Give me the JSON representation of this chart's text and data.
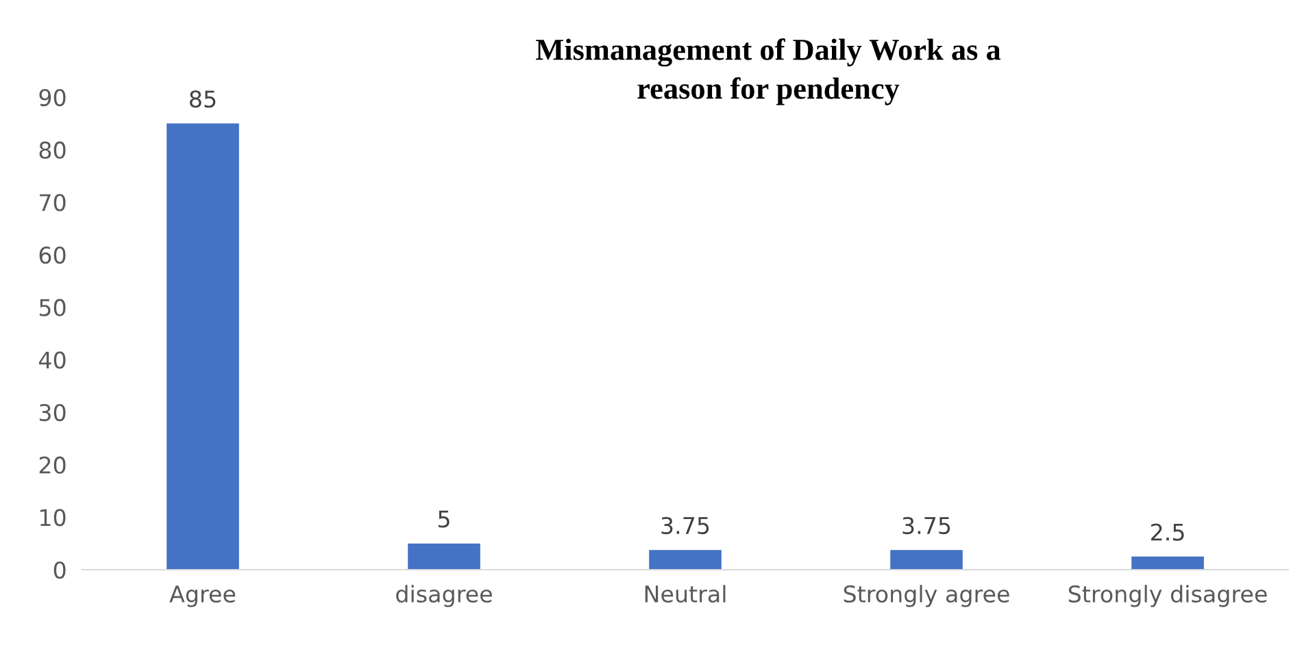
{
  "chart_data": {
    "type": "bar",
    "title": "Mismanagement of Daily Work as a\nreason for pendency",
    "categories": [
      "Agree",
      "disagree",
      "Neutral",
      "Strongly agree",
      "Strongly disagree"
    ],
    "values": [
      85,
      5,
      3.75,
      3.75,
      2.5
    ],
    "color": "#4472c4",
    "ylim": [
      0,
      90
    ],
    "yticks": [
      0,
      10,
      20,
      30,
      40,
      50,
      60,
      70,
      80,
      90
    ],
    "grid": false,
    "data_labels": true
  }
}
